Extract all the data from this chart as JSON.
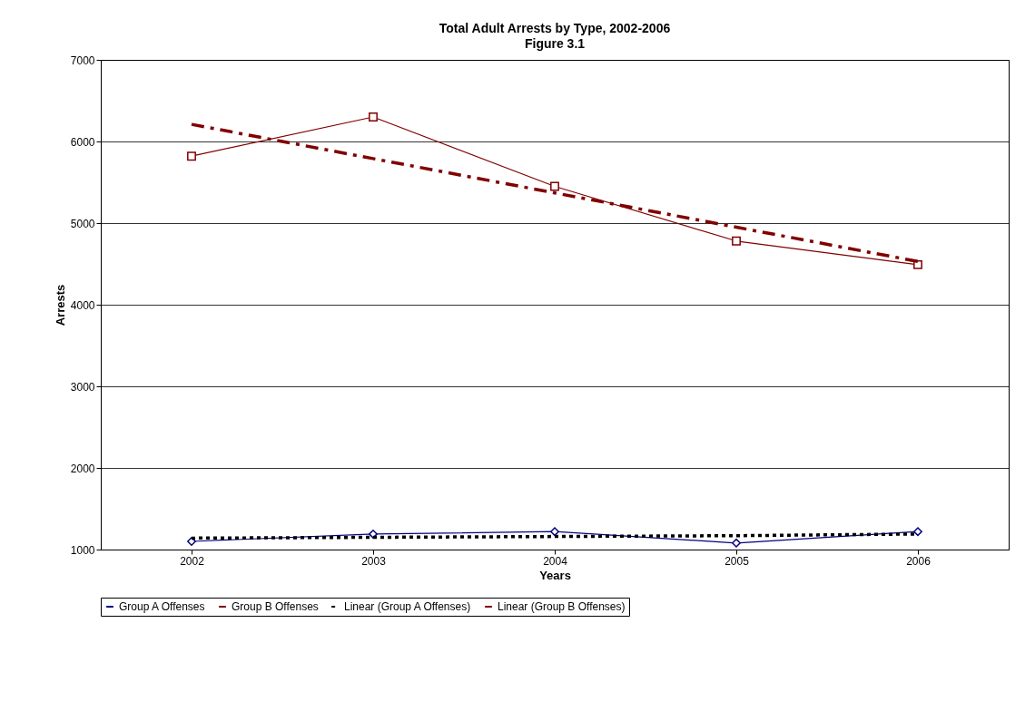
{
  "chart_data": {
    "type": "line",
    "title": "Total Adult Arrests by Type, 2002-2006",
    "subtitle": "Figure 3.1",
    "xlabel": "Years",
    "ylabel": "Arrests",
    "categories": [
      "2002",
      "2003",
      "2004",
      "2005",
      "2006"
    ],
    "series": [
      {
        "name": "Group A Offenses",
        "color": "#000080",
        "values": [
          1100,
          1190,
          1220,
          1080,
          1220
        ],
        "marker": "diamond",
        "line_style": "solid"
      },
      {
        "name": "Group B Offenses",
        "color": "#800000",
        "values": [
          5820,
          6300,
          5450,
          4780,
          4490
        ],
        "marker": "square",
        "line_style": "solid"
      },
      {
        "name": "Linear (Group A Offenses)",
        "type": "line",
        "color": "#000000",
        "values": [
          1140,
          1150,
          1160,
          1170,
          1190
        ],
        "marker": "none",
        "line_style": "dotted"
      },
      {
        "name": "Linear (Group B Offenses)",
        "type": "line",
        "color": "#800000",
        "values": [
          6210,
          5790,
          5370,
          4950,
          4530
        ],
        "marker": "none",
        "line_style": "dashed"
      }
    ],
    "ylim": [
      1000,
      7000
    ],
    "yticks": [
      1000,
      2000,
      3000,
      4000,
      5000,
      6000,
      7000
    ],
    "grid": "y",
    "legend": "bottom"
  }
}
